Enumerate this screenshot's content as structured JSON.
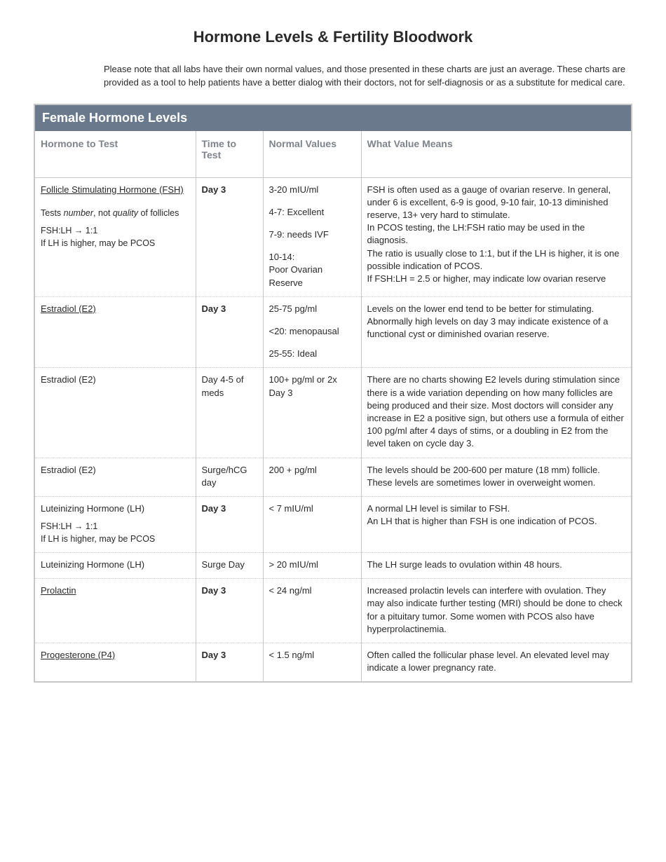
{
  "title": "Hormone Levels & Fertility Bloodwork",
  "intro": "Please note that all labs have their own normal values, and those presented in these charts are just an average. These charts are provided as a tool to help patients have a better dialog with their doctors, not for self-diagnosis or as a substitute for medical care.",
  "section_title": "Female Hormone Levels",
  "columns": {
    "hormone": "Hormone to Test",
    "time": "Time to Test",
    "values": "Normal Values",
    "meaning": "What Value Means"
  },
  "rows": [
    {
      "hormone_link": "Follicle Stimulating Hormone (FSH)",
      "hormone_sub1_pre": "Tests ",
      "hormone_sub1_ital1": "number",
      "hormone_sub1_mid": ", not ",
      "hormone_sub1_ital2": "quality",
      "hormone_sub1_post": " of follicles",
      "hormone_sub2": "FSH:LH → 1:1\nIf LH is higher, may be PCOS",
      "time": "Day 3",
      "time_bold": true,
      "values": [
        "3-20 mIU/ml",
        "4-7:  Excellent",
        "7-9: needs IVF",
        "10-14:\nPoor Ovarian Reserve"
      ],
      "meaning": "FSH is often used as a gauge of ovarian reserve. In general, under 6 is excellent, 6-9 is good, 9-10 fair, 10-13 diminished reserve, 13+ very hard to stimulate.\nIn PCOS testing, the LH:FSH ratio may be used in the diagnosis.\nThe ratio is usually close to 1:1, but if the LH is higher, it is one possible indication of PCOS.\nIf FSH:LH = 2.5 or higher, may indicate low ovarian reserve"
    },
    {
      "hormone_link": "Estradiol (E2)",
      "time": "Day 3",
      "time_bold": true,
      "values": [
        "25-75 pg/ml",
        "<20: menopausal",
        "25-55: Ideal"
      ],
      "meaning": "Levels on the lower end tend to be better for stimulating. Abnormally high levels on day 3 may indicate existence of a functional cyst or diminished ovarian reserve."
    },
    {
      "hormone_plain": "Estradiol (E2)",
      "time": "Day 4-5 of meds",
      "time_bold": false,
      "values": [
        "100+ pg/ml or 2x Day 3"
      ],
      "meaning": "There are no charts showing E2 levels during stimulation since there is a wide variation depending on how many follicles are being produced and their size. Most doctors will consider any increase in E2 a positive sign, but others use a formula of either 100 pg/ml after 4 days of stims, or a doubling in E2 from the level taken on cycle day 3."
    },
    {
      "hormone_plain": "Estradiol (E2)",
      "time": "Surge/hCG day",
      "time_bold": false,
      "values": [
        "200 + pg/ml"
      ],
      "meaning": "The levels should be 200-600 per mature (18 mm) follicle. These levels are sometimes lower in overweight women."
    },
    {
      "hormone_plain": "Luteinizing Hormone (LH)",
      "hormone_sub2": "FSH:LH → 1:1\nIf LH is higher, may be PCOS",
      "time": "Day 3",
      "time_bold": true,
      "values": [
        "< 7 mIU/ml"
      ],
      "meaning": "A normal LH level is similar to FSH.\nAn LH that is higher than FSH is one indication of PCOS."
    },
    {
      "hormone_plain": "Luteinizing Hormone (LH)",
      "time": "Surge Day",
      "time_bold": false,
      "values": [
        "> 20 mIU/ml"
      ],
      "meaning": "The LH surge leads to ovulation within 48 hours."
    },
    {
      "hormone_link": "Prolactin",
      "time": "Day 3",
      "time_bold": true,
      "values": [
        "< 24 ng/ml"
      ],
      "meaning": "Increased prolactin levels can interfere with ovulation. They may also indicate further testing (MRI) should be done to check for a pituitary tumor. Some women with PCOS also have hyperprolactinemia."
    },
    {
      "hormone_link": "Progesterone (P4)",
      "time": "Day 3",
      "time_bold": true,
      "values": [
        "< 1.5 ng/ml"
      ],
      "meaning": "Often called the follicular phase level. An elevated level may indicate a lower pregnancy rate."
    }
  ]
}
